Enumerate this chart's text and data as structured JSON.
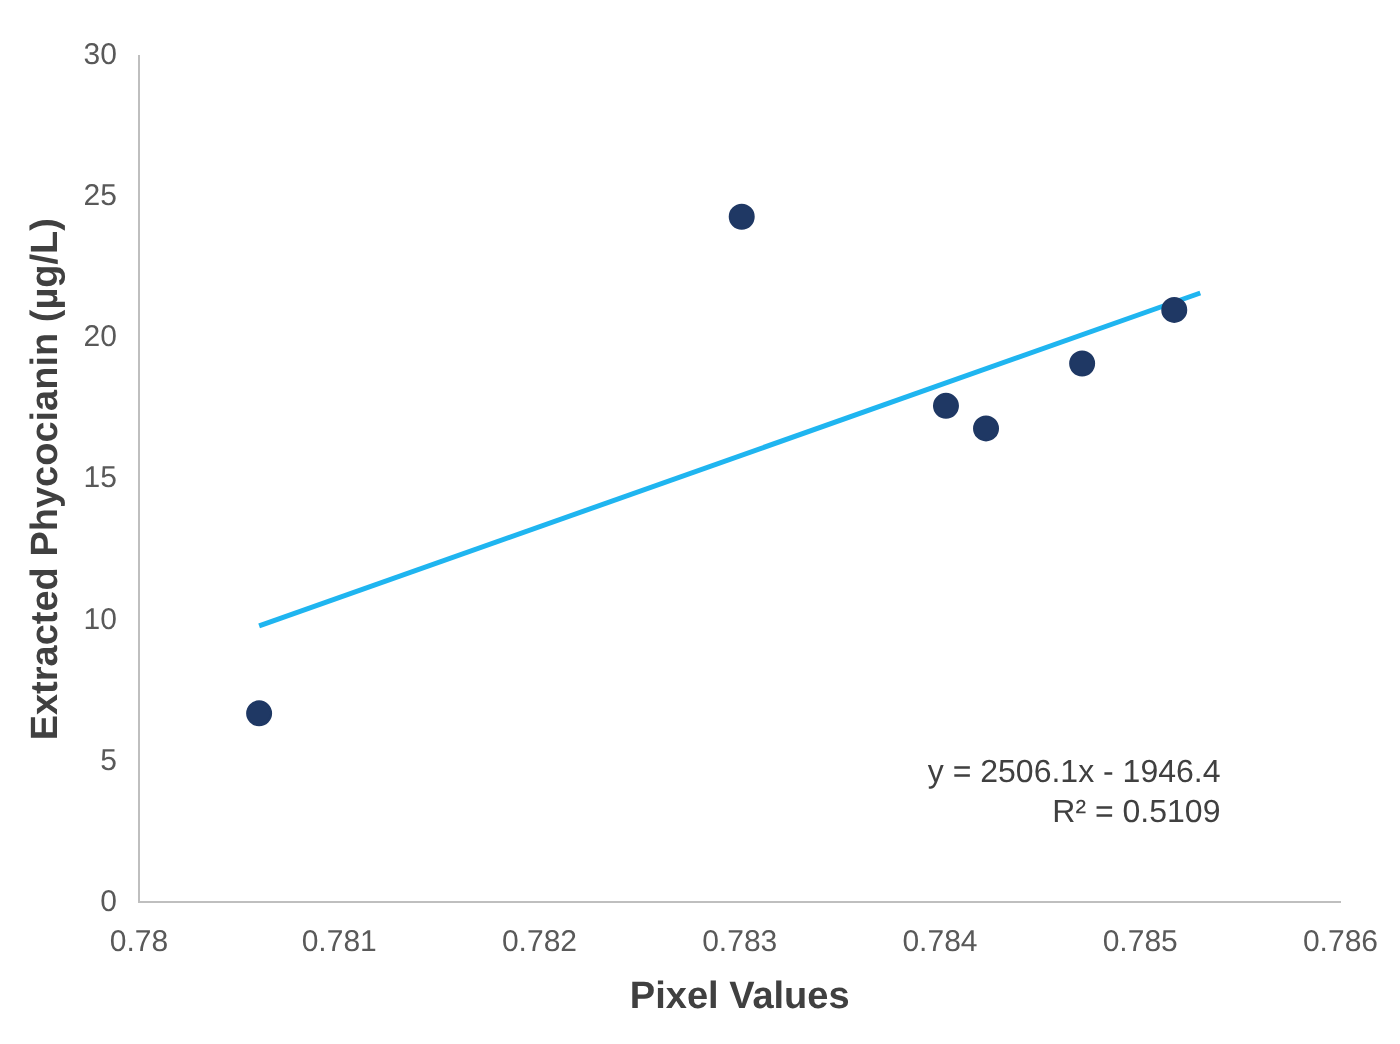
{
  "chart_data": {
    "type": "scatter",
    "xlabel": "Pixel Values",
    "ylabel": "Extracted Phycocianin (µg/L)",
    "series": [
      {
        "type": "scatter",
        "marker": "circle",
        "color": "#1f3864",
        "x": [
          0.7806,
          0.78301,
          0.78403,
          0.78423,
          0.78471,
          0.78517
        ],
        "values": [
          6.7,
          24.3,
          17.6,
          16.8,
          19.1,
          21.0
        ]
      },
      {
        "type": "line",
        "marker": "none",
        "color": "#1fb5f0",
        "x": [
          0.7806,
          0.7853
        ],
        "values": [
          9.8,
          21.6
        ]
      }
    ],
    "xlim": [
      0.78,
      0.786
    ],
    "xticks": [
      0.78,
      0.781,
      0.782,
      0.783,
      0.784,
      0.785,
      0.786
    ],
    "ylim": [
      0,
      30
    ],
    "yticks": [
      0,
      5,
      10,
      15,
      20,
      25,
      30
    ],
    "grid": false,
    "legend": false,
    "annotations": [
      "y = 2506.1x - 1946.4",
      "R² = 0.5109"
    ]
  }
}
